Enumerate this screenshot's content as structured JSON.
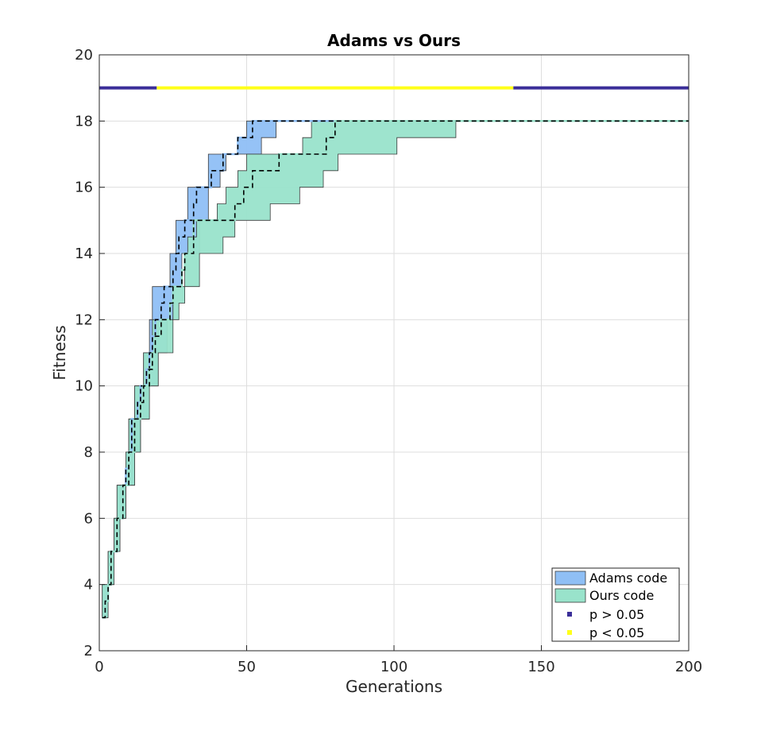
{
  "chart_data": {
    "type": "area",
    "title": "Adams vs Ours",
    "xlabel": "Generations",
    "ylabel": "Fitness",
    "xlim": [
      0,
      200
    ],
    "ylim": [
      2,
      20
    ],
    "xticks": [
      0,
      50,
      100,
      150,
      200
    ],
    "yticks": [
      2,
      4,
      6,
      8,
      10,
      12,
      14,
      16,
      18,
      20
    ],
    "grid": true,
    "legend_position": "bottom-right",
    "series": [
      {
        "name": "Adams code",
        "color": "#8fbff5",
        "median": [
          [
            1,
            3
          ],
          [
            2,
            3.5
          ],
          [
            3,
            4
          ],
          [
            4,
            5
          ],
          [
            6,
            6
          ],
          [
            8,
            7
          ],
          [
            9,
            7.5
          ],
          [
            10,
            8
          ],
          [
            11,
            9
          ],
          [
            13,
            9.5
          ],
          [
            14,
            10
          ],
          [
            16,
            10.5
          ],
          [
            17,
            11
          ],
          [
            18,
            11.5
          ],
          [
            19,
            12
          ],
          [
            21,
            12.5
          ],
          [
            22,
            13
          ],
          [
            25,
            13.5
          ],
          [
            26,
            14
          ],
          [
            27,
            14.5
          ],
          [
            29,
            15
          ],
          [
            31,
            15
          ],
          [
            32,
            15.5
          ],
          [
            33,
            16
          ],
          [
            37,
            16
          ],
          [
            38,
            16.5
          ],
          [
            41,
            16.5
          ],
          [
            42,
            17
          ],
          [
            46,
            17
          ],
          [
            47,
            17.5
          ],
          [
            51,
            17.5
          ],
          [
            52,
            18
          ],
          [
            200,
            18
          ]
        ],
        "upper": [
          [
            1,
            4
          ],
          [
            3,
            5
          ],
          [
            5,
            6
          ],
          [
            6,
            7
          ],
          [
            9,
            8
          ],
          [
            10,
            9
          ],
          [
            12,
            10
          ],
          [
            15,
            11
          ],
          [
            17,
            12
          ],
          [
            18,
            13
          ],
          [
            24,
            14
          ],
          [
            26,
            15
          ],
          [
            30,
            16
          ],
          [
            37,
            17
          ],
          [
            47,
            17.5
          ],
          [
            50,
            18
          ],
          [
            200,
            18
          ]
        ],
        "lower": [
          [
            1,
            3
          ],
          [
            3,
            4
          ],
          [
            5,
            5
          ],
          [
            7,
            6
          ],
          [
            9,
            7
          ],
          [
            12,
            8
          ],
          [
            14,
            9
          ],
          [
            17,
            10
          ],
          [
            20,
            11
          ],
          [
            23,
            12
          ],
          [
            25,
            13
          ],
          [
            28,
            14
          ],
          [
            34,
            15
          ],
          [
            37,
            16
          ],
          [
            41,
            16.5
          ],
          [
            43,
            17
          ],
          [
            55,
            17.5
          ],
          [
            60,
            18
          ],
          [
            200,
            18
          ]
        ]
      },
      {
        "name": "Ours code",
        "color": "#99e3cb",
        "median": [
          [
            1,
            3
          ],
          [
            2,
            3.5
          ],
          [
            3,
            4
          ],
          [
            4,
            5
          ],
          [
            6,
            6
          ],
          [
            8,
            7
          ],
          [
            10,
            8
          ],
          [
            12,
            9
          ],
          [
            14,
            9.5
          ],
          [
            15,
            10
          ],
          [
            17,
            10.5
          ],
          [
            18,
            11
          ],
          [
            19,
            11.5
          ],
          [
            21,
            12
          ],
          [
            24,
            12.5
          ],
          [
            25,
            13
          ],
          [
            28,
            13.5
          ],
          [
            29,
            14
          ],
          [
            31,
            14
          ],
          [
            32,
            15
          ],
          [
            45,
            15
          ],
          [
            46,
            15.5
          ],
          [
            49,
            16
          ],
          [
            51,
            16
          ],
          [
            52,
            16.5
          ],
          [
            60,
            16.5
          ],
          [
            61,
            17
          ],
          [
            76,
            17
          ],
          [
            77,
            17.5
          ],
          [
            79,
            17.5
          ],
          [
            80,
            18
          ],
          [
            200,
            18
          ]
        ],
        "upper": [
          [
            1,
            4
          ],
          [
            3,
            5
          ],
          [
            5,
            6
          ],
          [
            6,
            7
          ],
          [
            9,
            8
          ],
          [
            10,
            9
          ],
          [
            12,
            10
          ],
          [
            15,
            11
          ],
          [
            18,
            12
          ],
          [
            25,
            13
          ],
          [
            29,
            14
          ],
          [
            30,
            14.5
          ],
          [
            33,
            15
          ],
          [
            40,
            15.5
          ],
          [
            43,
            16
          ],
          [
            47,
            16.5
          ],
          [
            50,
            17
          ],
          [
            69,
            17.5
          ],
          [
            72,
            18
          ],
          [
            200,
            18
          ]
        ],
        "lower": [
          [
            1,
            3
          ],
          [
            3,
            4
          ],
          [
            5,
            5
          ],
          [
            7,
            6
          ],
          [
            9,
            7
          ],
          [
            12,
            8
          ],
          [
            14,
            9
          ],
          [
            17,
            10
          ],
          [
            20,
            11
          ],
          [
            25,
            12
          ],
          [
            27,
            12.5
          ],
          [
            29,
            13
          ],
          [
            34,
            14
          ],
          [
            42,
            14.5
          ],
          [
            46,
            15
          ],
          [
            58,
            15.5
          ],
          [
            68,
            16
          ],
          [
            76,
            16.5
          ],
          [
            81,
            17
          ],
          [
            101,
            17.5
          ],
          [
            121,
            18
          ],
          [
            200,
            18
          ]
        ]
      }
    ],
    "significance": {
      "y": 19,
      "segments": [
        {
          "from": 0,
          "to": 19.5,
          "class": "p > 0.05"
        },
        {
          "from": 19.5,
          "to": 140.5,
          "class": "p < 0.05"
        },
        {
          "from": 140.5,
          "to": 200,
          "class": "p > 0.05"
        }
      ]
    },
    "legend": [
      {
        "label": "Adams code",
        "kind": "patch",
        "color": "#8fbff5"
      },
      {
        "label": "Ours code",
        "kind": "patch",
        "color": "#99e3cb"
      },
      {
        "label": "p > 0.05",
        "kind": "marker",
        "color": "#3b2f99"
      },
      {
        "label": "p < 0.05",
        "kind": "marker",
        "color": "#ffff1a"
      }
    ],
    "colors": {
      "nonsig": "#3b2f99",
      "sig": "#ffff1a",
      "median": "#000000"
    }
  }
}
